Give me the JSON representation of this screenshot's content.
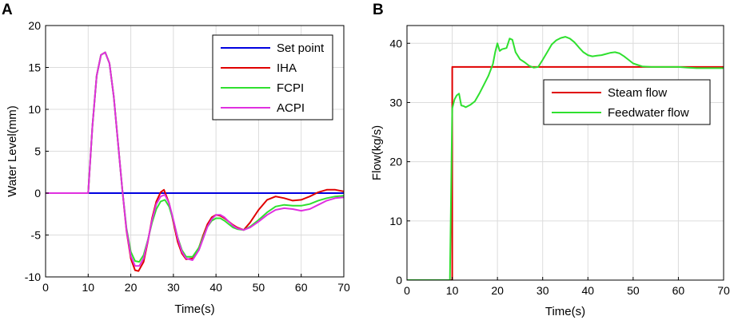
{
  "chart_data": [
    {
      "panel": "A",
      "type": "line",
      "title": "",
      "xlabel": "Time(s)",
      "ylabel": "Water Level(mm)",
      "xlim": [
        0,
        70
      ],
      "ylim": [
        -10,
        20
      ],
      "xticks": [
        0,
        10,
        20,
        30,
        40,
        50,
        60,
        70
      ],
      "yticks": [
        -10,
        -5,
        0,
        5,
        10,
        15,
        20
      ],
      "grid": true,
      "legend_position": "top-right",
      "series": [
        {
          "name": "Set point",
          "color": "#0000e0",
          "x": [
            0,
            70
          ],
          "y": [
            0,
            0
          ]
        },
        {
          "name": "IHA",
          "color": "#e00000",
          "x": [
            0,
            10,
            11,
            12,
            13,
            14,
            15,
            16,
            17,
            18,
            19,
            20,
            21,
            21.8,
            23,
            24,
            25,
            26,
            27,
            27.8,
            29,
            30,
            31,
            32,
            33,
            34.5,
            36,
            37,
            38,
            39,
            40,
            41,
            42,
            43,
            44,
            45,
            46.5,
            48,
            50,
            52,
            54,
            56,
            58,
            60,
            62,
            64,
            66,
            68,
            70
          ],
          "y": [
            0,
            0,
            8,
            14,
            16.5,
            16.8,
            15.5,
            11.5,
            6,
            0.5,
            -4.5,
            -7.8,
            -9.2,
            -9.3,
            -8.2,
            -5.8,
            -3,
            -1,
            0.1,
            0.4,
            -1.2,
            -3.5,
            -5.8,
            -7.2,
            -7.9,
            -7.8,
            -6.5,
            -5,
            -3.7,
            -2.9,
            -2.6,
            -2.7,
            -3,
            -3.4,
            -3.8,
            -4.1,
            -4.4,
            -3.5,
            -2,
            -0.8,
            -0.4,
            -0.6,
            -0.9,
            -0.8,
            -0.4,
            0.1,
            0.4,
            0.4,
            0.2
          ]
        },
        {
          "name": "FCPI",
          "color": "#2fe02f",
          "x": [
            0,
            10,
            11,
            12,
            13,
            14,
            15,
            16,
            17,
            18,
            19,
            20,
            21,
            22,
            23,
            24,
            25,
            26,
            27,
            28,
            29,
            30,
            31,
            32,
            33,
            34.5,
            36,
            37,
            38,
            39,
            40,
            41,
            42,
            43,
            44,
            45,
            46.5,
            48,
            50,
            52,
            54,
            56,
            58,
            60,
            62,
            64,
            66,
            68,
            70
          ],
          "y": [
            0,
            0,
            8,
            14,
            16.5,
            16.8,
            15.5,
            11.5,
            6,
            0.5,
            -4.2,
            -7,
            -8.1,
            -8.2,
            -7.4,
            -5.6,
            -3.5,
            -1.9,
            -1,
            -0.8,
            -1.6,
            -3.3,
            -5.3,
            -6.8,
            -7.6,
            -7.6,
            -6.5,
            -5.2,
            -4,
            -3.3,
            -3,
            -3,
            -3.3,
            -3.7,
            -4.1,
            -4.3,
            -4.4,
            -4,
            -3.2,
            -2.3,
            -1.6,
            -1.4,
            -1.5,
            -1.5,
            -1.3,
            -0.9,
            -0.6,
            -0.4,
            -0.3
          ]
        },
        {
          "name": "ACPI",
          "color": "#e030e0",
          "x": [
            0,
            10,
            11,
            12,
            13,
            14,
            15,
            16,
            17,
            18,
            19,
            20,
            21,
            22,
            23,
            24,
            25,
            26,
            27,
            28,
            29,
            30,
            31,
            32,
            33,
            34.5,
            36,
            37,
            38,
            39,
            40,
            41,
            42,
            43,
            44,
            45,
            46.5,
            48,
            50,
            52,
            54,
            56,
            58,
            60,
            62,
            64,
            66,
            68,
            70
          ],
          "y": [
            0,
            0,
            8,
            14,
            16.5,
            16.8,
            15.5,
            11.5,
            6,
            0.5,
            -4.4,
            -7.5,
            -8.7,
            -8.7,
            -7.8,
            -5.7,
            -3.2,
            -1.3,
            -0.4,
            -0.2,
            -1.2,
            -3.2,
            -5.4,
            -7,
            -7.8,
            -8,
            -6.8,
            -5.4,
            -4,
            -3.1,
            -2.6,
            -2.6,
            -2.9,
            -3.4,
            -3.9,
            -4.2,
            -4.4,
            -4.1,
            -3.4,
            -2.6,
            -2,
            -1.8,
            -1.9,
            -2.1,
            -1.9,
            -1.4,
            -0.9,
            -0.6,
            -0.5
          ]
        }
      ]
    },
    {
      "panel": "B",
      "type": "line",
      "title": "",
      "xlabel": "Time(s)",
      "ylabel": "Flow(kg/s)",
      "xlim": [
        0,
        70
      ],
      "ylim": [
        0,
        43
      ],
      "xticks": [
        0,
        10,
        20,
        30,
        40,
        50,
        60,
        70
      ],
      "yticks": [
        0,
        10,
        20,
        30,
        40
      ],
      "grid": true,
      "legend_position": "center-right",
      "series": [
        {
          "name": "Steam flow",
          "color": "#e00000",
          "x": [
            0,
            10,
            10,
            70
          ],
          "y": [
            0,
            0,
            36,
            36
          ]
        },
        {
          "name": "Feedwater flow",
          "color": "#2fe02f",
          "x": [
            0,
            9.5,
            10,
            10.5,
            11,
            11.5,
            12,
            12.5,
            13,
            14,
            15,
            16,
            17,
            18,
            19,
            19.5,
            20,
            20.5,
            21,
            22,
            22.7,
            23.3,
            24,
            25,
            26,
            27,
            28,
            29,
            30,
            31,
            32,
            33,
            34,
            35,
            36,
            37,
            38,
            39,
            40,
            41,
            42,
            43,
            44,
            45,
            46,
            47,
            48,
            49,
            50,
            52,
            54,
            56,
            58,
            60,
            62,
            64,
            66,
            68,
            70
          ],
          "y": [
            0,
            0,
            29,
            30.5,
            31.2,
            31.5,
            29.5,
            29.4,
            29.2,
            29.6,
            30.2,
            31.5,
            33,
            34.5,
            36.5,
            38.5,
            40,
            38.7,
            39,
            39.2,
            40.8,
            40.6,
            38.5,
            37.3,
            36.8,
            36.2,
            35.9,
            36,
            37.2,
            38.5,
            39.8,
            40.5,
            40.9,
            41.1,
            40.8,
            40.2,
            39.3,
            38.5,
            38,
            37.8,
            37.9,
            38,
            38.2,
            38.4,
            38.5,
            38.3,
            37.8,
            37.2,
            36.6,
            36.1,
            36,
            36,
            36,
            36,
            35.9,
            35.8,
            35.8,
            35.8,
            35.8
          ]
        }
      ]
    }
  ]
}
